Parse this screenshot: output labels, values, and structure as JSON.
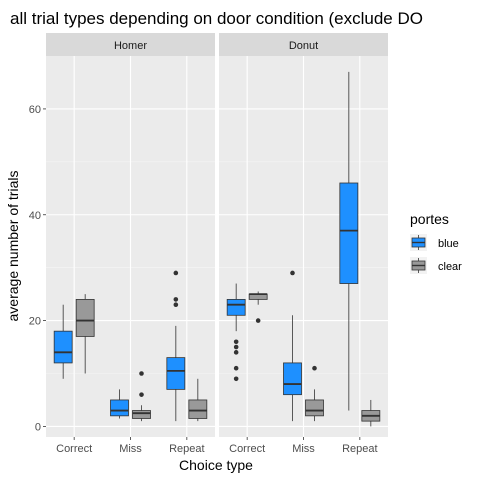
{
  "chart_data": {
    "type": "boxplot",
    "title": "all trial types depending on door condition (exclude DO",
    "xlabel": "Choice type",
    "ylabel": "average number of trials",
    "ylim": [
      -2,
      70
    ],
    "yticks": [
      0,
      20,
      40,
      60
    ],
    "categories": [
      "Correct",
      "Miss",
      "Repeat"
    ],
    "legend": {
      "title": "portes",
      "position": "right",
      "entries": [
        {
          "name": "blue",
          "color": "#1e90ff"
        },
        {
          "name": "clear",
          "color": "#999999"
        }
      ]
    },
    "facets": [
      {
        "name": "Homer",
        "groups": [
          {
            "category": "Correct",
            "series": "blue",
            "whisker_low": 9,
            "q1": 12,
            "median": 14,
            "q3": 18,
            "whisker_high": 23,
            "outliers": []
          },
          {
            "category": "Correct",
            "series": "clear",
            "whisker_low": 10,
            "q1": 17,
            "median": 20,
            "q3": 24,
            "whisker_high": 25,
            "outliers": []
          },
          {
            "category": "Miss",
            "series": "blue",
            "whisker_low": 1.5,
            "q1": 2,
            "median": 3,
            "q3": 5,
            "whisker_high": 7,
            "outliers": []
          },
          {
            "category": "Miss",
            "series": "clear",
            "whisker_low": 1,
            "q1": 1.5,
            "median": 2.5,
            "q3": 3,
            "whisker_high": 4,
            "outliers": [
              6,
              10
            ]
          },
          {
            "category": "Repeat",
            "series": "blue",
            "whisker_low": 1,
            "q1": 7,
            "median": 10.5,
            "q3": 13,
            "whisker_high": 19,
            "outliers": [
              23,
              24,
              29
            ]
          },
          {
            "category": "Repeat",
            "series": "clear",
            "whisker_low": 1,
            "q1": 1.5,
            "median": 3,
            "q3": 5,
            "whisker_high": 9,
            "outliers": []
          }
        ]
      },
      {
        "name": "Donut",
        "groups": [
          {
            "category": "Correct",
            "series": "blue",
            "whisker_low": 18,
            "q1": 21,
            "median": 23,
            "q3": 24,
            "whisker_high": 27,
            "outliers": [
              9,
              11,
              14,
              15,
              16
            ]
          },
          {
            "category": "Correct",
            "series": "clear",
            "whisker_low": 23,
            "q1": 24,
            "median": 25,
            "q3": 25,
            "whisker_high": 25.5,
            "outliers": [
              20
            ]
          },
          {
            "category": "Miss",
            "series": "blue",
            "whisker_low": 1,
            "q1": 6,
            "median": 8,
            "q3": 12,
            "whisker_high": 21,
            "outliers": [
              29
            ]
          },
          {
            "category": "Miss",
            "series": "clear",
            "whisker_low": 1,
            "q1": 2,
            "median": 3,
            "q3": 5,
            "whisker_high": 7,
            "outliers": [
              11
            ]
          },
          {
            "category": "Repeat",
            "series": "blue",
            "whisker_low": 3,
            "q1": 27,
            "median": 37,
            "q3": 46,
            "whisker_high": 67,
            "outliers": []
          },
          {
            "category": "Repeat",
            "series": "clear",
            "whisker_low": 0,
            "q1": 1,
            "median": 2,
            "q3": 3,
            "whisker_high": 5,
            "outliers": []
          }
        ]
      }
    ]
  }
}
